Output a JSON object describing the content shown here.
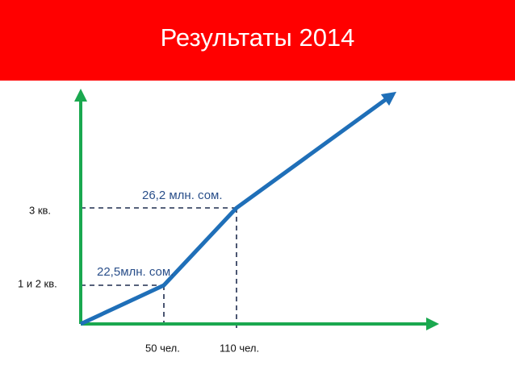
{
  "header": {
    "title": "Результаты 2014"
  },
  "diagram": {
    "y_labels": [
      "1 и 2 кв.",
      "3 кв."
    ],
    "x_labels": [
      "50 чел.",
      "110 чел."
    ],
    "point_labels": [
      "22,5млн. сом.",
      "26,2 млн. сом."
    ]
  }
}
